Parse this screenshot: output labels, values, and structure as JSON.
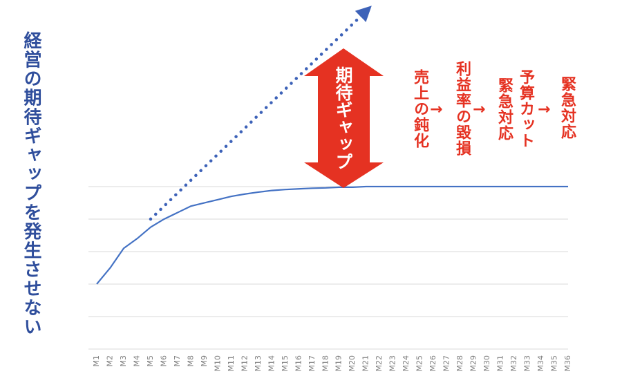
{
  "chart_data": {
    "type": "line",
    "title": "経営の期待ギャップを発生させない",
    "categories": [
      "M1",
      "M2",
      "M3",
      "M4",
      "M5",
      "M6",
      "M7",
      "M8",
      "M9",
      "M10",
      "M11",
      "M12",
      "M13",
      "M14",
      "M15",
      "M16",
      "M17",
      "M18",
      "M19",
      "M20",
      "M21",
      "M22",
      "M23",
      "M24",
      "M25",
      "M26",
      "M27",
      "M28",
      "M29",
      "M30",
      "M31",
      "M32",
      "M33",
      "M34",
      "M35",
      "M36"
    ],
    "series": [
      {
        "color": "#4472c4",
        "style": "solid",
        "values": [
          2.0,
          2.5,
          3.1,
          3.4,
          3.75,
          4.0,
          4.2,
          4.4,
          4.5,
          4.6,
          4.7,
          4.77,
          4.83,
          4.88,
          4.91,
          4.93,
          4.95,
          4.96,
          4.98,
          4.98,
          5.0,
          5.0,
          5.0,
          5.0,
          5.0,
          5.0,
          5.0,
          5.0,
          5.0,
          5.0,
          5.0,
          5.0,
          5.0,
          5.0,
          5.0,
          5.0
        ]
      },
      {
        "color": "#3d62b8",
        "style": "dotted-arrow",
        "values": [
          null,
          null,
          null,
          null,
          4.0,
          4.4,
          4.8,
          5.2,
          5.6,
          6.0,
          6.4,
          6.8,
          7.2,
          7.6,
          8.0,
          8.4,
          8.8,
          9.2,
          9.6,
          10.0,
          10.4,
          null,
          null,
          null,
          null,
          null,
          null,
          null,
          null,
          null,
          null,
          null,
          null,
          null,
          null,
          null
        ]
      }
    ],
    "ylim": [
      0,
      10.7
    ],
    "yticks": [
      0,
      1,
      2,
      3,
      4,
      5
    ],
    "grid": true,
    "annotations": {
      "gap": "期待ギャップ",
      "steps": [
        "売上の鈍化",
        "利益率の毀損",
        "予算カット",
        "緊急対応",
        "緊急対応"
      ],
      "arrows": [
        "→",
        "→",
        "→"
      ],
      "color": "#e53222"
    }
  }
}
